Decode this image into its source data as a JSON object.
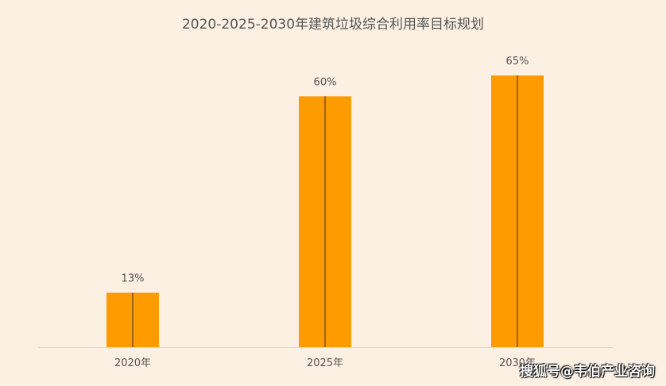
{
  "chart_data": {
    "type": "bar",
    "title": "2020-2025-2030年建筑垃圾综合利用率目标规划",
    "categories": [
      "2020年",
      "2025年",
      "2030年"
    ],
    "values": [
      13,
      60,
      65
    ],
    "data_labels": [
      "13%",
      "60%",
      "65%"
    ],
    "unit": "%",
    "xlabel": "",
    "ylabel": "",
    "ylim": [
      0,
      65
    ],
    "grid": false,
    "legend": "none",
    "colors": {
      "bar": "#fd9b00",
      "bar_line": "#5a4030",
      "axis": "#e2d6c8",
      "background": "#fcf0e2"
    }
  },
  "watermark": "搜狐号@韦伯产业咨询"
}
